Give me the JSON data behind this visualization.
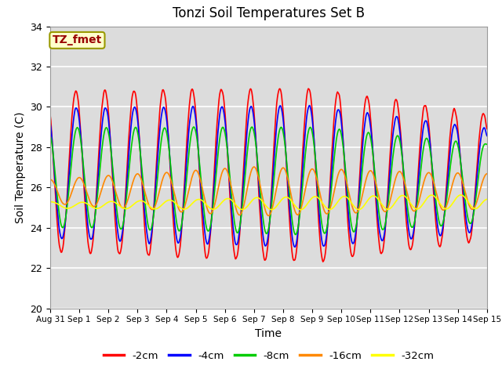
{
  "title": "Tonzi Soil Temperatures Set B",
  "xlabel": "Time",
  "ylabel": "Soil Temperature (C)",
  "ylim": [
    20,
    34
  ],
  "annotation": "TZ_fmet",
  "annotation_color": "#990000",
  "annotation_bg": "#FFFFCC",
  "annotation_edge": "#999900",
  "lines": [
    {
      "label": "-2cm",
      "color": "#FF0000"
    },
    {
      "label": "-4cm",
      "color": "#0000FF"
    },
    {
      "label": "-8cm",
      "color": "#00CC00"
    },
    {
      "label": "-16cm",
      "color": "#FF8800"
    },
    {
      "label": "-32cm",
      "color": "#FFFF00"
    }
  ],
  "xticklabels": [
    "Aug 31",
    "Sep 1",
    "Sep 2",
    "Sep 3",
    "Sep 4",
    "Sep 5",
    "Sep 6",
    "Sep 7",
    "Sep 8",
    "Sep 9",
    "Sep 10",
    "Sep 11",
    "Sep 12",
    "Sep 13",
    "Sep 14",
    "Sep 15"
  ],
  "n_days": 15,
  "background_color": "#DCDCDC",
  "grid_color": "#FFFFFF",
  "fig_bg": "#FFFFFF"
}
